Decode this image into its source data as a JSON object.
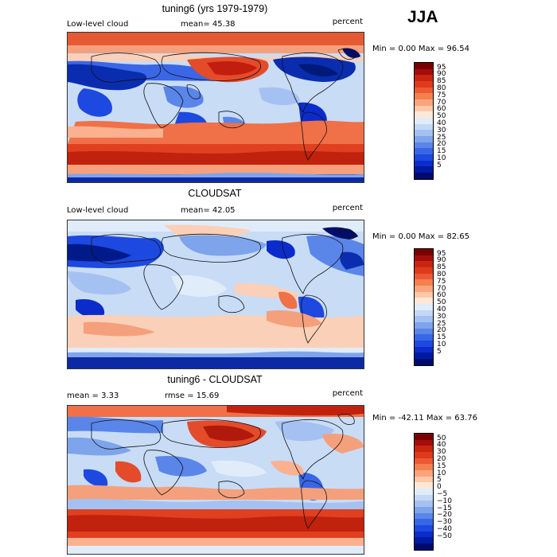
{
  "season": "JJA",
  "panels": [
    {
      "title": "tuning6 (yrs 1979-1979)",
      "left_label": "Low-level cloud",
      "middle_label": "mean=  45.38",
      "right_label": "percent",
      "minmax": "Min =   0.00 Max =  96.54",
      "colorbar": {
        "colors": [
          "#7a0000",
          "#a50d0d",
          "#c8260e",
          "#de3a1c",
          "#ec5a34",
          "#f5804f",
          "#fba57c",
          "#fdc9a8",
          "#fde8d8",
          "#e1ecfb",
          "#c3d8f5",
          "#a4c1f1",
          "#7ea4ec",
          "#5a86ea",
          "#3966e6",
          "#1d49e0",
          "#0b2ccb",
          "#001aa3",
          "#000a6e"
        ],
        "labels": [
          "95",
          "90",
          "85",
          "80",
          "75",
          "70",
          "60",
          "50",
          "40",
          "30",
          "25",
          "20",
          "15",
          "10",
          "5"
        ]
      }
    },
    {
      "title": "CLOUDSAT",
      "left_label": "Low-level cloud",
      "middle_label": "mean=  42.05",
      "right_label": "percent",
      "minmax": "Min =   0.00 Max =  82.65",
      "colorbar": {
        "colors": [
          "#7a0000",
          "#a50d0d",
          "#c8260e",
          "#de3a1c",
          "#ec5a34",
          "#f5804f",
          "#fba57c",
          "#fdc9a8",
          "#fde8d8",
          "#e1ecfb",
          "#c3d8f5",
          "#a4c1f1",
          "#7ea4ec",
          "#5a86ea",
          "#3966e6",
          "#1d49e0",
          "#0b2ccb",
          "#001aa3",
          "#000a6e"
        ],
        "labels": [
          "95",
          "90",
          "85",
          "80",
          "75",
          "70",
          "60",
          "50",
          "40",
          "30",
          "25",
          "20",
          "15",
          "10",
          "5"
        ]
      }
    },
    {
      "title": "tuning6 - CLOUDSAT",
      "left_label": "mean =    3.33",
      "middle_label": "rmse =   15.69",
      "right_label": "percent",
      "minmax": "Min = -42.11 Max =  63.76",
      "colorbar": {
        "colors": [
          "#7a0000",
          "#a50d0d",
          "#c8260e",
          "#de3a1c",
          "#ec5a34",
          "#f5804f",
          "#fba57c",
          "#fdc9a8",
          "#fde8d8",
          "#e1ecfb",
          "#c3d8f5",
          "#a4c1f1",
          "#7ea4ec",
          "#5a86ea",
          "#3966e6",
          "#1d49e0",
          "#0b2ccb",
          "#001aa3",
          "#000a6e"
        ],
        "labels": [
          "50",
          "40",
          "30",
          "20",
          "15",
          "10",
          "5",
          "0",
          "−5",
          "−10",
          "−15",
          "−20",
          "−30",
          "−40",
          "−50"
        ]
      }
    }
  ]
}
